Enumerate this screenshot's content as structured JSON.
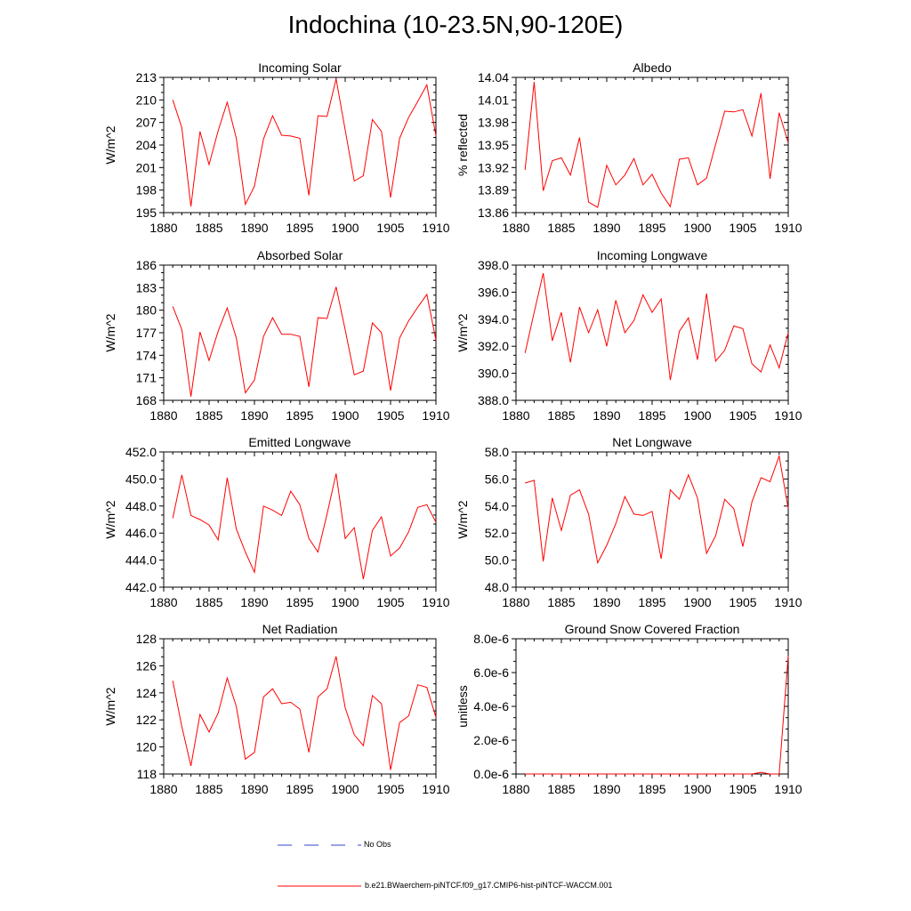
{
  "title": "Indochina (10-23.5N,90-120E)",
  "legend": {
    "obs_label": "No Obs",
    "obs_color": "#3344cc",
    "model_label": "b.e21.BWaerchem-piNTCF.f09_g17.CMIP6-hist-piNTCF-WACCM.001",
    "model_color": "#ff0000"
  },
  "chart_data": [
    {
      "type": "line",
      "title": "Incoming Solar",
      "ylabel": "W/m^2",
      "xlim": [
        1880,
        1910
      ],
      "ylim": [
        195,
        213
      ],
      "yticks": [
        "195",
        "198",
        "201",
        "204",
        "207",
        "210",
        "213"
      ],
      "xticks": [
        "1880",
        "1885",
        "1890",
        "1895",
        "1900",
        "1905",
        "1910"
      ],
      "series": [
        {
          "x": [
            1881,
            1882,
            1883,
            1884,
            1885,
            1886,
            1887,
            1888,
            1889,
            1890,
            1891,
            1892,
            1893,
            1894,
            1895,
            1896,
            1897,
            1898,
            1899,
            1900,
            1901,
            1902,
            1903,
            1904,
            1905,
            1906,
            1907,
            1908,
            1909,
            1910
          ],
          "values": [
            210,
            206.3,
            195.8,
            205.8,
            201.4,
            205.9,
            209.7,
            204.9,
            196.1,
            198.5,
            204.8,
            207.9,
            205.3,
            205.2,
            204.9,
            197.3,
            207.9,
            207.8,
            212.8,
            206,
            199.2,
            199.9,
            207.4,
            205.8,
            197,
            204.9,
            207.7,
            209.8,
            212,
            205.2
          ]
        }
      ]
    },
    {
      "type": "line",
      "title": "Albedo",
      "ylabel": "% reflected",
      "xlim": [
        1880,
        1910
      ],
      "ylim": [
        13.86,
        14.04
      ],
      "yticks": [
        "13.86",
        "13.89",
        "13.92",
        "13.95",
        "13.98",
        "14.01",
        "14.04"
      ],
      "xticks": [
        "1880",
        "1885",
        "1890",
        "1895",
        "1900",
        "1905",
        "1910"
      ],
      "series": [
        {
          "x": [
            1881,
            1882,
            1883,
            1884,
            1885,
            1886,
            1887,
            1888,
            1889,
            1890,
            1891,
            1892,
            1893,
            1894,
            1895,
            1896,
            1897,
            1898,
            1899,
            1900,
            1901,
            1902,
            1903,
            1904,
            1905,
            1906,
            1907,
            1908,
            1909,
            1910
          ],
          "values": [
            13.917,
            14.034,
            13.889,
            13.929,
            13.933,
            13.91,
            13.96,
            13.874,
            13.867,
            13.923,
            13.897,
            13.91,
            13.932,
            13.897,
            13.911,
            13.886,
            13.868,
            13.931,
            13.933,
            13.897,
            13.906,
            13.951,
            13.995,
            13.994,
            13.997,
            13.962,
            14.019,
            13.905,
            13.993,
            13.953
          ]
        }
      ]
    },
    {
      "type": "line",
      "title": "Absorbed Solar",
      "ylabel": "W/m^2",
      "xlim": [
        1880,
        1910
      ],
      "ylim": [
        168,
        186
      ],
      "yticks": [
        "168",
        "171",
        "174",
        "177",
        "180",
        "183",
        "186"
      ],
      "xticks": [
        "1880",
        "1885",
        "1890",
        "1895",
        "1900",
        "1905",
        "1910"
      ],
      "series": [
        {
          "x": [
            1881,
            1882,
            1883,
            1884,
            1885,
            1886,
            1887,
            1888,
            1889,
            1890,
            1891,
            1892,
            1893,
            1894,
            1895,
            1896,
            1897,
            1898,
            1899,
            1900,
            1901,
            1902,
            1903,
            1904,
            1905,
            1906,
            1907,
            1908,
            1909,
            1910
          ],
          "values": [
            180.5,
            177.4,
            168.5,
            177.1,
            173.3,
            177.2,
            180.3,
            176.3,
            169,
            170.7,
            176.5,
            179,
            176.8,
            176.8,
            176.5,
            169.8,
            179,
            178.9,
            183.1,
            177.4,
            171.4,
            171.9,
            178.3,
            177,
            169.3,
            176.3,
            178.6,
            180.4,
            182.1,
            176
          ]
        }
      ]
    },
    {
      "type": "line",
      "title": "Incoming Longwave",
      "ylabel": "W/m^2",
      "xlim": [
        1880,
        1910
      ],
      "ylim": [
        388.0,
        398.0
      ],
      "yticks": [
        "388.0",
        "390.0",
        "392.0",
        "394.0",
        "396.0",
        "398.0"
      ],
      "xticks": [
        "1880",
        "1885",
        "1890",
        "1895",
        "1900",
        "1905",
        "1910"
      ],
      "series": [
        {
          "x": [
            1881,
            1882,
            1883,
            1884,
            1885,
            1886,
            1887,
            1888,
            1889,
            1890,
            1891,
            1892,
            1893,
            1894,
            1895,
            1896,
            1897,
            1898,
            1899,
            1900,
            1901,
            1902,
            1903,
            1904,
            1905,
            1906,
            1907,
            1908,
            1909,
            1910
          ],
          "values": [
            391.5,
            394.5,
            397.4,
            392.4,
            394.5,
            390.8,
            394.9,
            393,
            394.7,
            392,
            395.4,
            393,
            393.9,
            395.8,
            394.5,
            395.5,
            389.5,
            393.1,
            394.1,
            391,
            395.9,
            390.9,
            391.7,
            393.5,
            393.3,
            390.7,
            390.1,
            392.1,
            390.4,
            393
          ]
        }
      ]
    },
    {
      "type": "line",
      "title": "Emitted Longwave",
      "ylabel": "W/m^2",
      "xlim": [
        1880,
        1910
      ],
      "ylim": [
        442.0,
        452.0
      ],
      "yticks": [
        "442.0",
        "444.0",
        "446.0",
        "448.0",
        "450.0",
        "452.0"
      ],
      "xticks": [
        "1880",
        "1885",
        "1890",
        "1895",
        "1900",
        "1905",
        "1910"
      ],
      "series": [
        {
          "x": [
            1881,
            1882,
            1883,
            1884,
            1885,
            1886,
            1887,
            1888,
            1889,
            1890,
            1891,
            1892,
            1893,
            1894,
            1895,
            1896,
            1897,
            1898,
            1899,
            1900,
            1901,
            1902,
            1903,
            1904,
            1905,
            1906,
            1907,
            1908,
            1909,
            1910
          ],
          "values": [
            447.1,
            450.3,
            447.3,
            447,
            446.6,
            445.5,
            450.1,
            446.3,
            444.6,
            443.1,
            448,
            447.7,
            447.3,
            449.1,
            448.1,
            445.6,
            444.6,
            447.4,
            450.4,
            445.6,
            446.4,
            442.6,
            446.2,
            447.2,
            444.3,
            444.9,
            446.1,
            447.9,
            448.1,
            446.8
          ]
        }
      ]
    },
    {
      "type": "line",
      "title": "Net Longwave",
      "ylabel": "W/m^2",
      "xlim": [
        1880,
        1910
      ],
      "ylim": [
        48.0,
        58.0
      ],
      "yticks": [
        "48.0",
        "50.0",
        "52.0",
        "54.0",
        "56.0",
        "58.0"
      ],
      "xticks": [
        "1880",
        "1885",
        "1890",
        "1895",
        "1900",
        "1905",
        "1910"
      ],
      "series": [
        {
          "x": [
            1881,
            1882,
            1883,
            1884,
            1885,
            1886,
            1887,
            1888,
            1889,
            1890,
            1891,
            1892,
            1893,
            1894,
            1895,
            1896,
            1897,
            1898,
            1899,
            1900,
            1901,
            1902,
            1903,
            1904,
            1905,
            1906,
            1907,
            1908,
            1909,
            1910
          ],
          "values": [
            55.7,
            55.9,
            49.9,
            54.6,
            52.2,
            54.8,
            55.2,
            53.4,
            49.8,
            51.1,
            52.7,
            54.7,
            53.4,
            53.3,
            53.6,
            50.1,
            55.2,
            54.5,
            56.3,
            54.6,
            50.5,
            51.8,
            54.5,
            53.8,
            51,
            54.3,
            56.1,
            55.8,
            57.7,
            53.8
          ]
        }
      ]
    },
    {
      "type": "line",
      "title": "Net Radiation",
      "ylabel": "W/m^2",
      "xlim": [
        1880,
        1910
      ],
      "ylim": [
        118,
        128
      ],
      "yticks": [
        "118",
        "120",
        "122",
        "124",
        "126",
        "128"
      ],
      "xticks": [
        "1880",
        "1885",
        "1890",
        "1895",
        "1900",
        "1905",
        "1910"
      ],
      "series": [
        {
          "x": [
            1881,
            1882,
            1883,
            1884,
            1885,
            1886,
            1887,
            1888,
            1889,
            1890,
            1891,
            1892,
            1893,
            1894,
            1895,
            1896,
            1897,
            1898,
            1899,
            1900,
            1901,
            1902,
            1903,
            1904,
            1905,
            1906,
            1907,
            1908,
            1909,
            1910
          ],
          "values": [
            124.9,
            121.5,
            118.6,
            122.4,
            121.1,
            122.5,
            125.1,
            123,
            119.1,
            119.6,
            123.7,
            124.3,
            123.2,
            123.3,
            122.8,
            119.6,
            123.7,
            124.3,
            126.7,
            122.9,
            120.9,
            120.1,
            123.8,
            123.2,
            118.3,
            121.8,
            122.3,
            124.6,
            124.4,
            122.2
          ]
        }
      ]
    },
    {
      "type": "line",
      "title": "Ground Snow Covered Fraction",
      "ylabel": "unitless",
      "xlim": [
        1880,
        1910
      ],
      "ylim": [
        0,
        8e-06
      ],
      "yticks": [
        "0.0e-6",
        "2.0e-6",
        "4.0e-6",
        "6.0e-6",
        "8.0e-6"
      ],
      "xticks": [
        "1880",
        "1885",
        "1890",
        "1895",
        "1900",
        "1905",
        "1910"
      ],
      "series": [
        {
          "x": [
            1881,
            1882,
            1883,
            1884,
            1885,
            1886,
            1887,
            1888,
            1889,
            1890,
            1891,
            1892,
            1893,
            1894,
            1895,
            1896,
            1897,
            1898,
            1899,
            1900,
            1901,
            1902,
            1903,
            1904,
            1905,
            1906,
            1907,
            1908,
            1909,
            1910
          ],
          "values": [
            0,
            0,
            0,
            0,
            0,
            0,
            0,
            0,
            0,
            0,
            0,
            0,
            0,
            0,
            0,
            0,
            0,
            0,
            0,
            0,
            0,
            0,
            0,
            0,
            0,
            0,
            1e-07,
            0,
            0,
            7e-06
          ]
        }
      ]
    }
  ]
}
